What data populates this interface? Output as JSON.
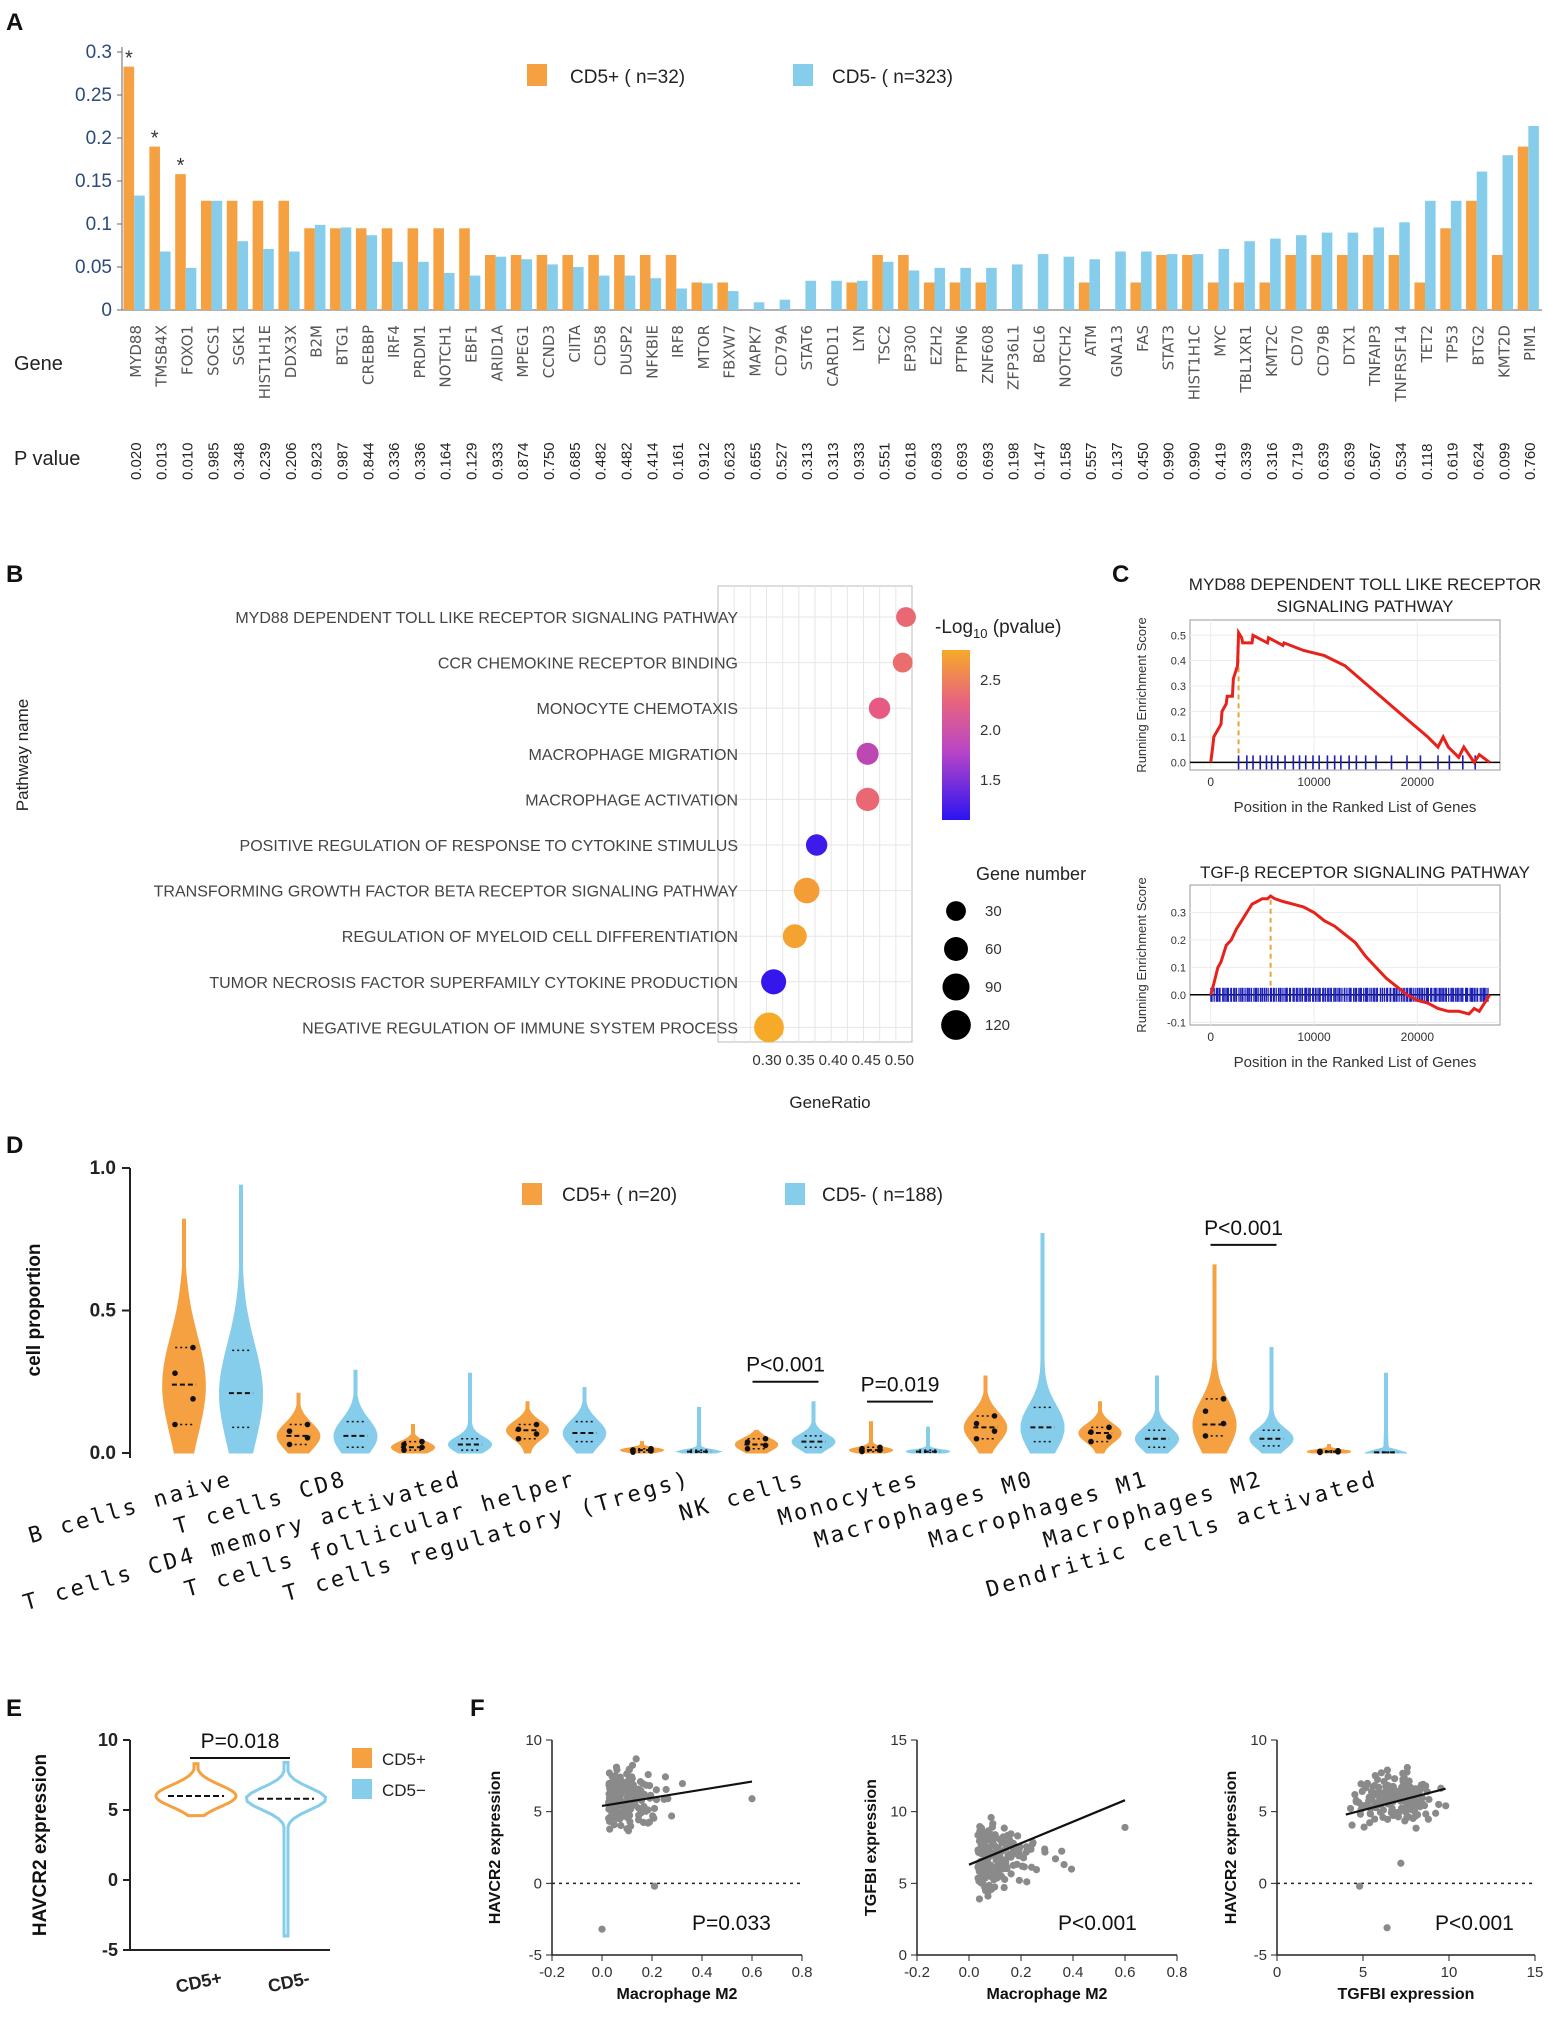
{
  "colors": {
    "cd5pos": "#F5A041",
    "cd5neg": "#86CDEB",
    "gsea_line": "#E8221B",
    "gsea_tick": "#1B1FB8",
    "gsea_peak": "#E8A33B",
    "scatter": "#8A8A8A"
  },
  "panels": {
    "A": "A",
    "B": "B",
    "C": "C",
    "D": "D",
    "E": "E",
    "F": "F"
  },
  "chart_data": [
    {
      "panel": "A",
      "type": "bar",
      "legend": [
        "CD5+ ( n=32)",
        "CD5- ( n=323)"
      ],
      "row_labels": {
        "gene": "Gene",
        "pvalue": "P value"
      },
      "ylim": [
        0,
        0.3
      ],
      "yticks": [
        "0",
        "0.05",
        "0.1",
        "0.15",
        "0.2",
        "0.25",
        "0.3"
      ],
      "star": "*",
      "star_categories": [
        "MYD88",
        "TMSB4X",
        "FOXO1"
      ],
      "categories": [
        "MYD88",
        "TMSB4X",
        "FOXO1",
        "SOCS1",
        "SGK1",
        "HIST1H1E",
        "DDX3X",
        "B2M",
        "BTG1",
        "CREBBP",
        "IRF4",
        "PRDM1",
        "NOTCH1",
        "EBF1",
        "ARID1A",
        "MPEG1",
        "CCND3",
        "CIITA",
        "CD58",
        "DUSP2",
        "NFKBIE",
        "IRF8",
        "MTOR",
        "FBXW7",
        "MAPK7",
        "CD79A",
        "STAT6",
        "CARD11",
        "LYN",
        "TSC2",
        "EP300",
        "EZH2",
        "PTPN6",
        "ZNF608",
        "ZFP36L1",
        "BCL6",
        "NOTCH2",
        "ATM",
        "GNA13",
        "FAS",
        "STAT3",
        "HIST1H1C",
        "MYC",
        "TBL1XR1",
        "KMT2C",
        "CD70",
        "CD79B",
        "DTX1",
        "TNFAIP3",
        "TNFRSF14",
        "TET2",
        "TP53",
        "BTG2",
        "KMT2D",
        "PIM1"
      ],
      "p_values": [
        "0.020",
        "0.013",
        "0.010",
        "0.985",
        "0.348",
        "0.239",
        "0.206",
        "0.923",
        "0.987",
        "0.844",
        "0.336",
        "0.336",
        "0.164",
        "0.129",
        "0.933",
        "0.874",
        "0.750",
        "0.685",
        "0.482",
        "0.482",
        "0.414",
        "0.161",
        "0.912",
        "0.623",
        "0.655",
        "0.527",
        "0.313",
        "0.313",
        "0.933",
        "0.551",
        "0.618",
        "0.693",
        "0.693",
        "0.693",
        "0.198",
        "0.147",
        "0.158",
        "0.557",
        "0.137",
        "0.450",
        "0.990",
        "0.990",
        "0.419",
        "0.339",
        "0.316",
        "0.719",
        "0.639",
        "0.639",
        "0.567",
        "0.534",
        "0.118",
        "0.619",
        "0.624",
        "0.099",
        "0.760"
      ],
      "series": [
        {
          "name": "CD5+",
          "values": [
            0.283,
            0.19,
            0.158,
            0.127,
            0.127,
            0.127,
            0.127,
            0.095,
            0.095,
            0.095,
            0.095,
            0.095,
            0.095,
            0.095,
            0.064,
            0.064,
            0.064,
            0.064,
            0.064,
            0.064,
            0.064,
            0.064,
            0.032,
            0.032,
            0,
            0,
            0,
            0,
            0.032,
            0.064,
            0.064,
            0.032,
            0.032,
            0.032,
            0,
            0,
            0,
            0.032,
            0,
            0.032,
            0.064,
            0.064,
            0.032,
            0.032,
            0.032,
            0.064,
            0.064,
            0.064,
            0.064,
            0.064,
            0.032,
            0.095,
            0.127,
            0.064,
            0.19
          ]
        },
        {
          "name": "CD5-",
          "values": [
            0.133,
            0.068,
            0.049,
            0.127,
            0.08,
            0.071,
            0.068,
            0.099,
            0.096,
            0.087,
            0.056,
            0.056,
            0.043,
            0.04,
            0.062,
            0.059,
            0.053,
            0.05,
            0.04,
            0.04,
            0.037,
            0.025,
            0.031,
            0.022,
            0.009,
            0.012,
            0.034,
            0.034,
            0.034,
            0.056,
            0.046,
            0.049,
            0.049,
            0.049,
            0.053,
            0.065,
            0.062,
            0.059,
            0.068,
            0.068,
            0.065,
            0.065,
            0.071,
            0.08,
            0.083,
            0.087,
            0.09,
            0.09,
            0.096,
            0.102,
            0.127,
            0.127,
            0.161,
            0.18,
            0.214
          ]
        }
      ]
    },
    {
      "panel": "B",
      "type": "scatter",
      "xlabel": "GeneRatio",
      "ylabel": "Pathway name",
      "xlim": [
        0.3,
        0.51
      ],
      "xticks": [
        "0.30",
        "0.35",
        "0.40",
        "0.45",
        "0.50"
      ],
      "pathways": [
        "MYD88 DEPENDENT TOLL LIKE RECEPTOR SIGNALING PATHWAY",
        "CCR CHEMOKINE RECEPTOR BINDING",
        "MONOCYTE CHEMOTAXIS",
        "MACROPHAGE MIGRATION",
        "MACROPHAGE ACTIVATION",
        "POSITIVE REGULATION OF RESPONSE TO CYTOKINE STIMULUS",
        "TRANSFORMING GROWTH FACTOR BETA RECEPTOR SIGNALING PATHWAY",
        "REGULATION OF MYELOID CELL DIFFERENTIATION",
        "TUMOR NECROSIS FACTOR SUPERFAMILY CYTOKINE PRODUCTION",
        "NEGATIVE REGULATION OF IMMUNE SYSTEM PROCESS"
      ],
      "gene_ratio": [
        0.51,
        0.505,
        0.47,
        0.452,
        0.452,
        0.375,
        0.36,
        0.342,
        0.31,
        0.303
      ],
      "neg_log10_p": [
        2.3,
        2.35,
        2.2,
        1.9,
        2.3,
        1.2,
        2.7,
        2.75,
        1.15,
        2.8
      ],
      "gene_number": [
        30,
        30,
        40,
        45,
        55,
        40,
        75,
        60,
        70,
        120
      ],
      "color_legend": {
        "title_prefix": "-Log",
        "title_sub": "10",
        "title_suffix": " (pvalue)",
        "ticks": [
          "2.5",
          "2.0",
          "1.5"
        ],
        "range": [
          1.1,
          2.8
        ]
      },
      "size_legend": {
        "title": "Gene number",
        "values": [
          "30",
          "60",
          "90",
          "120"
        ]
      }
    },
    {
      "panel": "C1",
      "type": "line",
      "title_lines": [
        "MYD88 DEPENDENT TOLL LIKE RECEPTOR",
        "SIGNALING PATHWAY"
      ],
      "xlabel": "Position in the Ranked List of Genes",
      "ylabel": "Running Enrichment Score",
      "xlim": [
        -2000,
        28000
      ],
      "ylim": [
        -0.03,
        0.56
      ],
      "xticks": [
        "0",
        "10000",
        "20000"
      ],
      "yticks": [
        "0.0",
        "0.1",
        "0.2",
        "0.3",
        "0.4",
        "0.5"
      ],
      "peak_x": 2700,
      "x": [
        0,
        200,
        300,
        1000,
        1100,
        1500,
        1600,
        2100,
        2200,
        2600,
        2700,
        3000,
        3100,
        4000,
        4100,
        5500,
        5600,
        7000,
        7100,
        9000,
        11000,
        13000,
        15000,
        17000,
        19000,
        21000,
        22000,
        22500,
        23000,
        24000,
        24500,
        25500,
        26000,
        27000
      ],
      "y": [
        0,
        0.06,
        0.1,
        0.15,
        0.2,
        0.23,
        0.26,
        0.26,
        0.33,
        0.38,
        0.51,
        0.49,
        0.47,
        0.47,
        0.5,
        0.47,
        0.49,
        0.46,
        0.47,
        0.44,
        0.42,
        0.38,
        0.31,
        0.24,
        0.17,
        0.1,
        0.06,
        0.1,
        0.06,
        0.02,
        0.06,
        0,
        0.03,
        0
      ],
      "hits": [
        2700,
        3500,
        4100,
        4800,
        5400,
        5900,
        6500,
        7200,
        8000,
        8600,
        9200,
        9900,
        10500,
        11300,
        12000,
        12600,
        13400,
        14100,
        15000,
        16000,
        17500,
        19000,
        20300,
        22000,
        23100,
        24400,
        25600
      ]
    },
    {
      "panel": "C2",
      "type": "line",
      "title_lines": [
        "TGF-β RECEPTOR SIGNALING PATHWAY"
      ],
      "xlabel": "Position in the Ranked List of Genes",
      "ylabel": "Running Enrichment Score",
      "xlim": [
        -2000,
        28000
      ],
      "ylim": [
        -0.11,
        0.4
      ],
      "xticks": [
        "0",
        "10000",
        "20000"
      ],
      "yticks": [
        "0.3",
        "0.2",
        "0.1",
        "0.0",
        "-0.1"
      ],
      "peak_x": 5800,
      "x": [
        0,
        300,
        700,
        1000,
        1500,
        2000,
        2500,
        3000,
        3500,
        4000,
        4500,
        5000,
        5500,
        5800,
        6200,
        7000,
        8000,
        9000,
        10000,
        11000,
        12000,
        13000,
        14000,
        15000,
        16000,
        17000,
        18000,
        19000,
        20000,
        21000,
        22000,
        23000,
        24000,
        25000,
        25500,
        26000,
        27000
      ],
      "y": [
        0,
        0.04,
        0.1,
        0.12,
        0.18,
        0.2,
        0.24,
        0.27,
        0.3,
        0.33,
        0.34,
        0.35,
        0.35,
        0.36,
        0.35,
        0.34,
        0.33,
        0.32,
        0.3,
        0.27,
        0.25,
        0.22,
        0.19,
        0.14,
        0.1,
        0.06,
        0.03,
        0,
        -0.02,
        -0.03,
        -0.05,
        -0.06,
        -0.06,
        -0.07,
        -0.05,
        -0.06,
        0
      ],
      "hit_density": 170
    },
    {
      "panel": "D",
      "type": "violin",
      "legend": [
        "CD5+ ( n=20)",
        "CD5- ( n=188)"
      ],
      "ylabel": "cell proportion",
      "ylim": [
        0,
        1.0
      ],
      "yticks": [
        "0.0",
        "0.5",
        "1.0"
      ],
      "categories": [
        "B cells naive",
        "T cells CD8",
        "T cells CD4 memory activated",
        "T cells follicular helper",
        "T cells regulatory (Tregs)",
        "NK cells",
        "Monocytes",
        "Macrophages M0",
        "Macrophages M1",
        "Macrophages M2",
        "Dendritic cells activated"
      ],
      "series": [
        {
          "name": "CD5+",
          "max": [
            0.82,
            0.21,
            0.1,
            0.18,
            0.04,
            0.08,
            0.11,
            0.27,
            0.18,
            0.66,
            0.03
          ],
          "median": [
            0.24,
            0.06,
            0.02,
            0.08,
            0.01,
            0.03,
            0.01,
            0.09,
            0.07,
            0.1,
            0.005
          ],
          "q1": [
            0.1,
            0.03,
            0.01,
            0.05,
            0.003,
            0.015,
            0.005,
            0.05,
            0.04,
            0.06,
            0.002
          ],
          "q3": [
            0.37,
            0.1,
            0.04,
            0.1,
            0.015,
            0.05,
            0.02,
            0.13,
            0.09,
            0.19,
            0.008
          ]
        },
        {
          "name": "CD5-",
          "max": [
            0.94,
            0.29,
            0.28,
            0.23,
            0.16,
            0.18,
            0.09,
            0.77,
            0.27,
            0.37,
            0.28
          ],
          "median": [
            0.21,
            0.06,
            0.03,
            0.07,
            0.005,
            0.04,
            0.005,
            0.09,
            0.05,
            0.05,
            0.002
          ],
          "q1": [
            0.09,
            0.02,
            0.01,
            0.04,
            0.002,
            0.02,
            0.002,
            0.04,
            0.02,
            0.025,
            0.001
          ],
          "q3": [
            0.36,
            0.11,
            0.05,
            0.11,
            0.01,
            0.06,
            0.01,
            0.16,
            0.08,
            0.08,
            0.003
          ]
        }
      ],
      "annotations": [
        {
          "text": "P<0.001",
          "category": "NK cells"
        },
        {
          "text": "P=0.019",
          "category": "Monocytes"
        },
        {
          "text": "P<0.001",
          "category": "Macrophages M2"
        }
      ]
    },
    {
      "panel": "E",
      "type": "violin",
      "ylabel": "HAVCR2 expression",
      "ylim": [
        -5,
        10
      ],
      "yticks": [
        "10",
        "5",
        "0",
        "-5"
      ],
      "categories": [
        "CD5+",
        "CD5-"
      ],
      "legend": [
        "CD5+",
        "CD5−"
      ],
      "annotation": "P=0.018",
      "series": [
        {
          "name": "CD5+",
          "min": 4.6,
          "max": 8.3,
          "median": 6.0
        },
        {
          "name": "CD5-",
          "min": -4.0,
          "max": 8.4,
          "median": 5.8
        }
      ]
    },
    {
      "panel": "F1",
      "type": "scatter",
      "xlabel": "Macrophage M2",
      "ylabel": "HAVCR2 expression",
      "xlim": [
        -0.2,
        0.8
      ],
      "ylim": [
        -5,
        10
      ],
      "xticks": [
        "-0.2",
        "0.0",
        "0.2",
        "0.4",
        "0.6",
        "0.8"
      ],
      "yticks": [
        "10",
        "5",
        "0",
        "-5"
      ],
      "annotation": "P=0.033",
      "fit": {
        "x": [
          0,
          0.6
        ],
        "y": [
          5.4,
          7.1
        ]
      },
      "cloud": {
        "x_center": 0.05,
        "x_spread": 0.12,
        "y_center": 6.0,
        "y_spread": 1.4,
        "n": 180
      },
      "outliers": [
        {
          "x": 0.0,
          "y": -3.2
        },
        {
          "x": 0.21,
          "y": -0.2
        },
        {
          "x": 0.6,
          "y": 5.9
        }
      ]
    },
    {
      "panel": "F2",
      "type": "scatter",
      "xlabel": "Macrophage M2",
      "ylabel": "TGFBI expression",
      "xlim": [
        -0.2,
        0.8
      ],
      "ylim": [
        0,
        15
      ],
      "xticks": [
        "-0.2",
        "0.0",
        "0.2",
        "0.4",
        "0.6",
        "0.8"
      ],
      "yticks": [
        "15",
        "10",
        "5",
        "0"
      ],
      "annotation": "P<0.001",
      "fit": {
        "x": [
          0,
          0.6
        ],
        "y": [
          6.3,
          10.8
        ]
      },
      "cloud": {
        "x_center": 0.06,
        "x_spread": 0.13,
        "y_center": 6.8,
        "y_spread": 1.6,
        "n": 180
      },
      "outliers": [
        {
          "x": 0.6,
          "y": 8.9
        }
      ]
    },
    {
      "panel": "F3",
      "type": "scatter",
      "xlabel": "TGFBI expression",
      "ylabel": "HAVCR2 expression",
      "xlim": [
        0,
        15
      ],
      "ylim": [
        -5,
        10
      ],
      "xticks": [
        "0",
        "5",
        "10",
        "15"
      ],
      "yticks": [
        "10",
        "5",
        "0",
        "-5"
      ],
      "annotation": "P<0.001",
      "fit": {
        "x": [
          4,
          9.8
        ],
        "y": [
          4.8,
          6.6
        ]
      },
      "cloud": {
        "x_center": 6.9,
        "x_spread": 1.6,
        "y_center": 5.9,
        "y_spread": 1.2,
        "n": 180
      },
      "outliers": [
        {
          "x": 4.8,
          "y": -0.2
        },
        {
          "x": 6.4,
          "y": -3.1
        },
        {
          "x": 7.2,
          "y": 1.4
        }
      ]
    }
  ]
}
